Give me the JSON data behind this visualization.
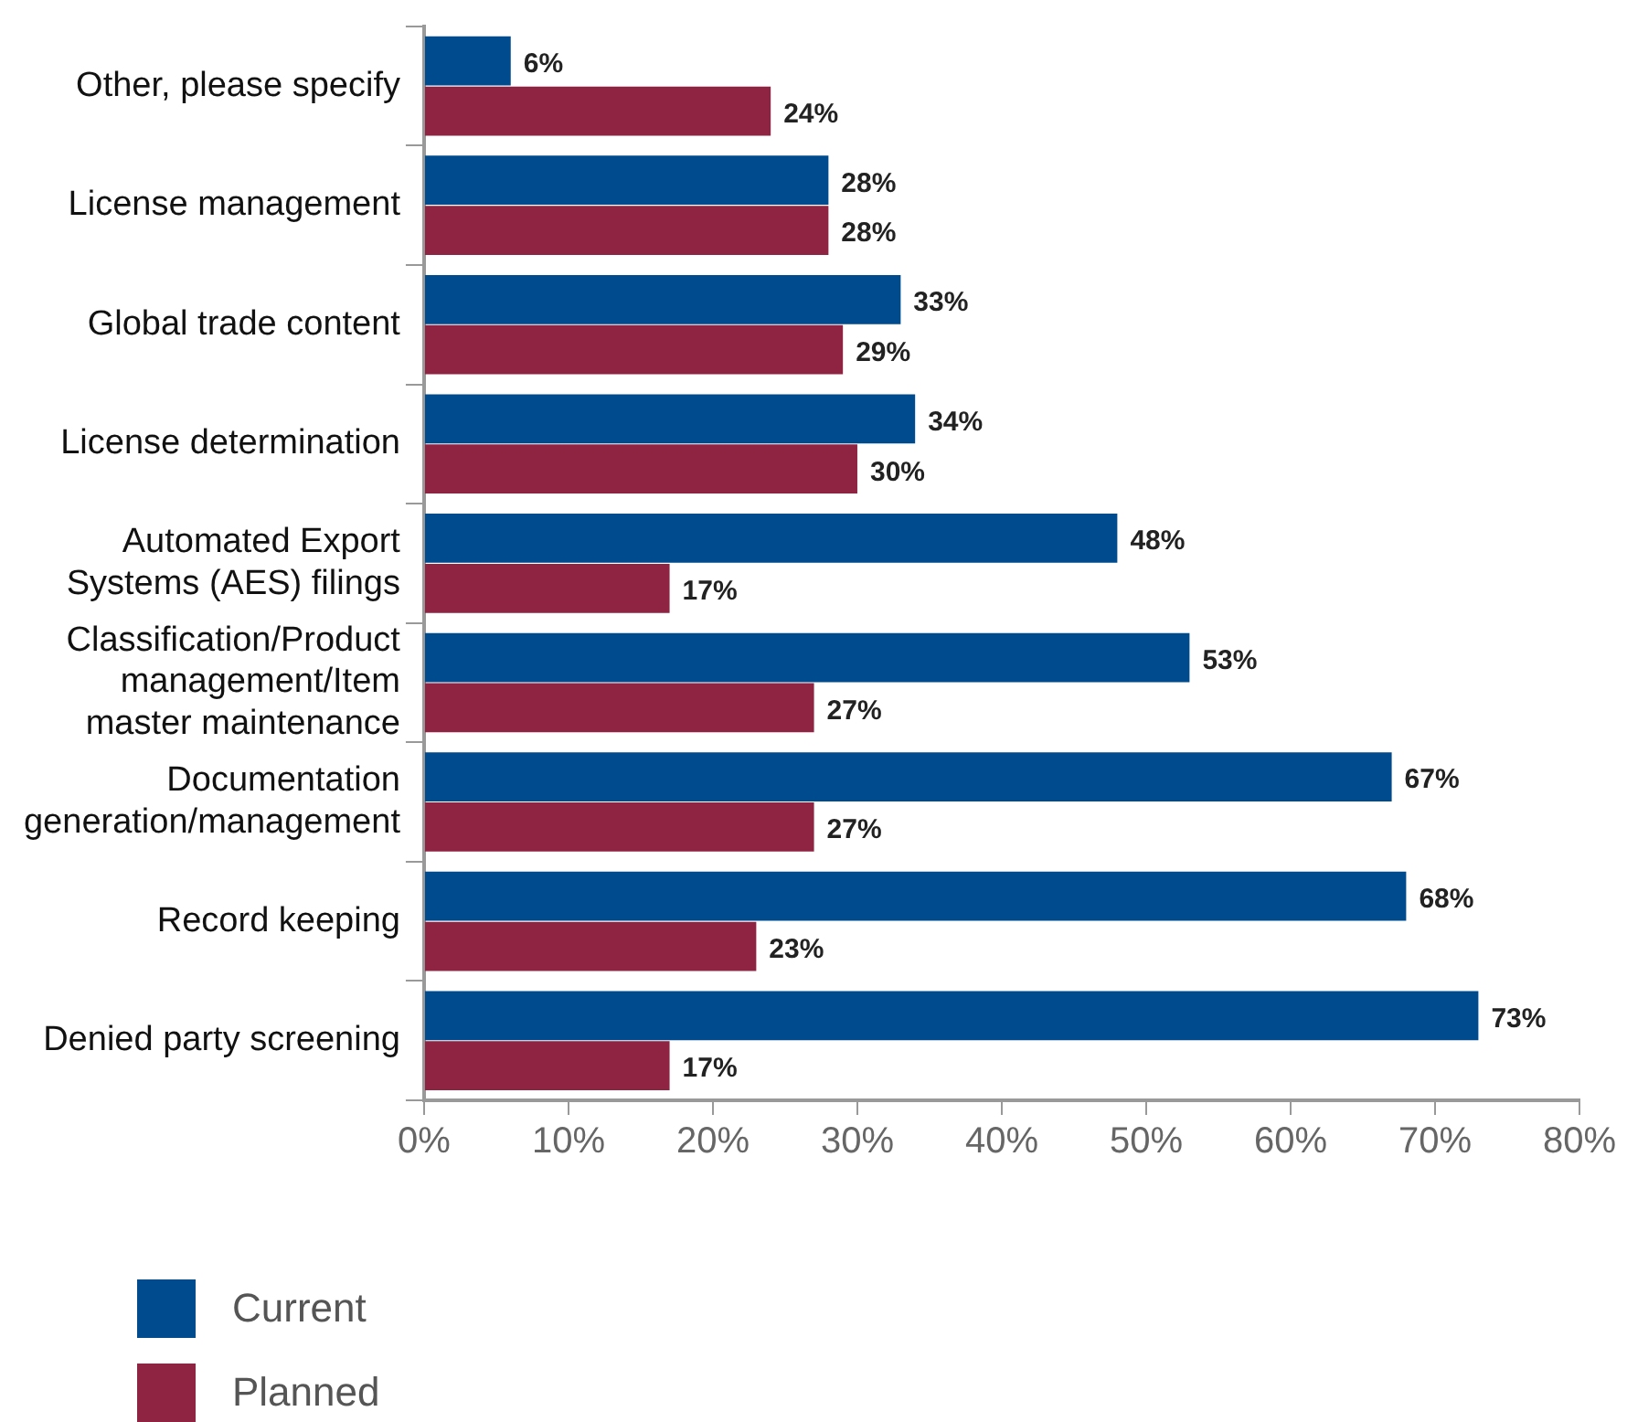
{
  "chart_data": {
    "type": "bar",
    "orientation": "horizontal",
    "categories": [
      "Other, please specify",
      "License management",
      "Global trade content",
      "License determination",
      "Automated Export\nSystems (AES) filings",
      "Classification/Product\nmanagement/Item\nmaster maintenance",
      "Documentation\ngeneration/management",
      "Record keeping",
      "Denied party screening"
    ],
    "series": [
      {
        "name": "Current",
        "color": "#004b8d",
        "values": [
          6,
          28,
          33,
          34,
          48,
          53,
          67,
          68,
          73
        ],
        "value_labels": [
          "6%",
          "28%",
          "33%",
          "34%",
          "48%",
          "53%",
          "67%",
          "68%",
          "73%"
        ]
      },
      {
        "name": "Planned",
        "color": "#8f2342",
        "values": [
          24,
          28,
          29,
          30,
          17,
          27,
          27,
          23,
          17
        ],
        "value_labels": [
          "24%",
          "28%",
          "29%",
          "30%",
          "17%",
          "27%",
          "27%",
          "23%",
          "17%"
        ]
      }
    ],
    "xlim": [
      0,
      80
    ],
    "xticks": [
      {
        "value": 0,
        "label": "0%"
      },
      {
        "value": 10,
        "label": "10%"
      },
      {
        "value": 20,
        "label": "20%"
      },
      {
        "value": 30,
        "label": "30%"
      },
      {
        "value": 40,
        "label": "40%"
      },
      {
        "value": 50,
        "label": "50%"
      },
      {
        "value": 60,
        "label": "60%"
      },
      {
        "value": 70,
        "label": "70%"
      },
      {
        "value": 80,
        "label": "80%"
      }
    ],
    "grid": false,
    "legend": "bottom left"
  }
}
